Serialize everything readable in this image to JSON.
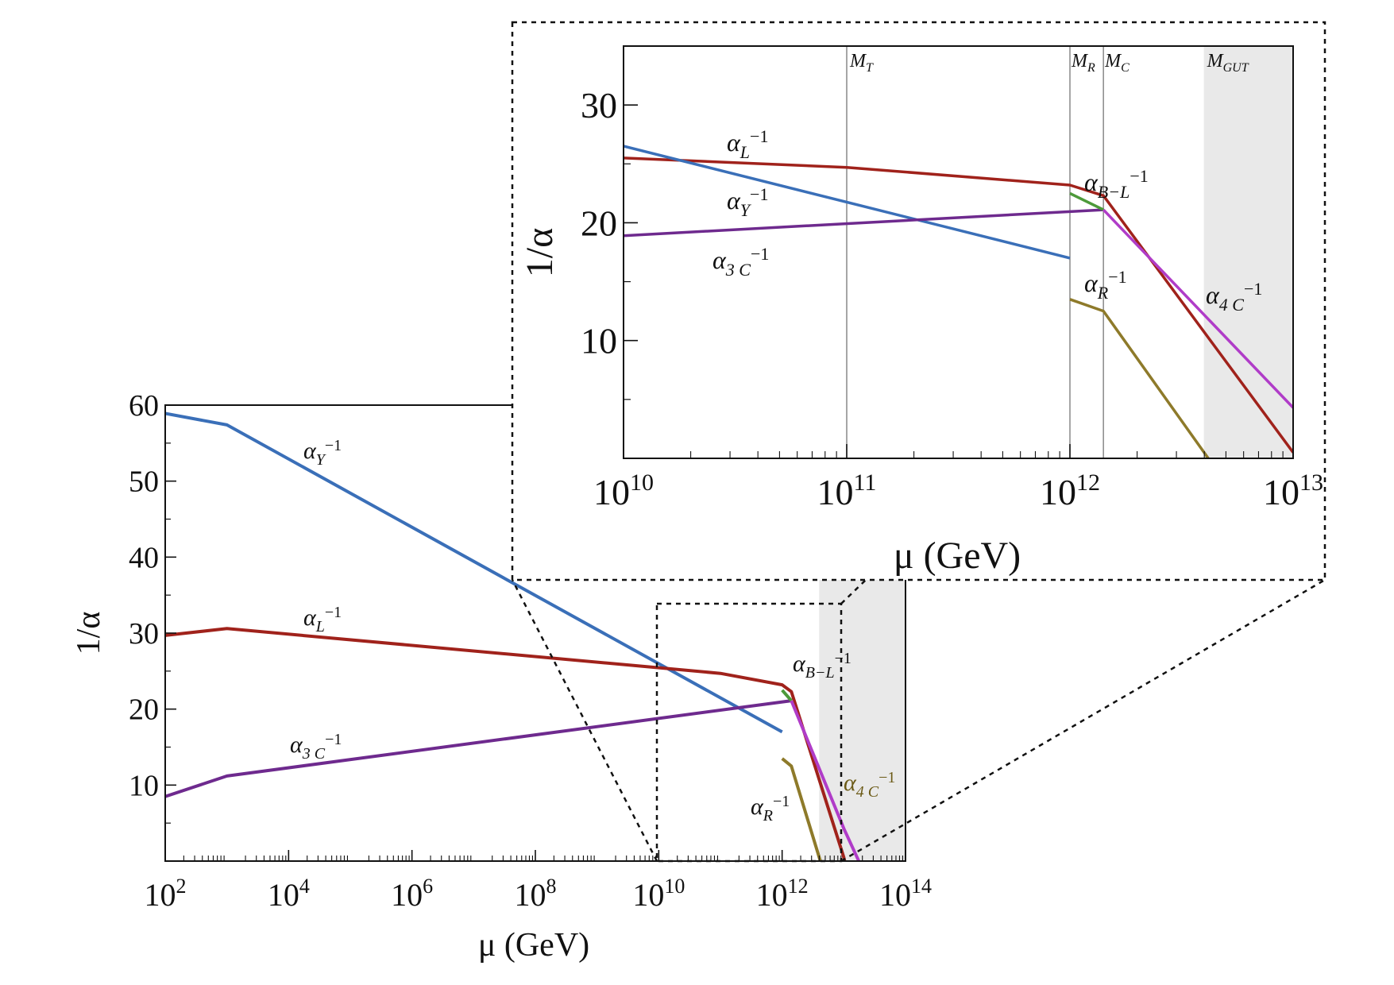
{
  "chart_data": [
    {
      "type": "line",
      "xscale": "log",
      "xlim_exp": [
        2,
        14
      ],
      "ylim": [
        0,
        60
      ],
      "xlabel": "μ (GeV)",
      "ylabel": "1/α",
      "xticks": [
        "10",
        "10",
        "10",
        "10",
        "10",
        "10",
        "10"
      ],
      "xtick_exponents": [
        "2",
        "4",
        "6",
        "8",
        "10",
        "12",
        "14"
      ],
      "xtick_values_exp": [
        2,
        4,
        6,
        8,
        10,
        12,
        14
      ],
      "yticks": [
        "10",
        "20",
        "30",
        "40",
        "50",
        "60"
      ],
      "ytick_values": [
        10,
        20,
        30,
        40,
        50,
        60
      ],
      "shaded_region_exp": [
        12.6,
        14
      ],
      "zoom_box_exp": [
        10,
        13
      ],
      "zoom_box_y": [
        0,
        34.5
      ],
      "series": [
        {
          "name": "αY⁻¹",
          "color": "#3a6fb8",
          "x_exp": [
            2,
            3,
            12
          ],
          "y": [
            58.9,
            57.4,
            17.0
          ]
        },
        {
          "name": "αL⁻¹",
          "color": "#a0221b",
          "x_exp": [
            2,
            3,
            11,
            12,
            12.15,
            13.0,
            13.1
          ],
          "y": [
            29.7,
            30.6,
            24.7,
            23.2,
            22.3,
            0.5,
            -3.0
          ]
        },
        {
          "name": "α3C⁻¹",
          "color": "#6e2a8e",
          "x_exp": [
            2,
            3,
            12.15
          ],
          "y": [
            8.5,
            11.2,
            21.1
          ]
        },
        {
          "name": "αB−L⁻¹",
          "color": "#4d9a3a",
          "x_exp": [
            12,
            12.15
          ],
          "y": [
            22.5,
            21.1
          ]
        },
        {
          "name": "α4C⁻¹",
          "color": "#b03cc8",
          "x_exp": [
            12.15,
            13.0,
            13.3
          ],
          "y": [
            21.1,
            4.3,
            -1.0
          ]
        },
        {
          "name": "αR⁻¹",
          "color": "#8e7a2a",
          "x_exp": [
            12,
            12.15,
            12.62
          ],
          "y": [
            13.5,
            12.5,
            0.0
          ]
        }
      ],
      "labels": {
        "alpha_y": {
          "base": "α",
          "sub": "Y",
          "sup": "−1"
        },
        "alpha_l": {
          "base": "α",
          "sub": "L",
          "sup": "−1"
        },
        "alpha_3c": {
          "base": "α",
          "sub": "3 C",
          "sup": "−1"
        },
        "alpha_bl": {
          "base": "α",
          "sub": "B−L",
          "sup": "−1"
        },
        "alpha_4c": {
          "base": "α",
          "sub": "4 C",
          "sup": "−1"
        },
        "alpha_r": {
          "base": "α",
          "sub": "R",
          "sup": "−1"
        }
      }
    },
    {
      "type": "line",
      "xscale": "log",
      "xlim_exp": [
        10,
        13
      ],
      "ylim": [
        0,
        35
      ],
      "xlabel": "μ (GeV)",
      "ylabel": "1/α",
      "xticks": [
        "10",
        "10",
        "10",
        "10"
      ],
      "xtick_exponents": [
        "10",
        "11",
        "12",
        "13"
      ],
      "xtick_values_exp": [
        10,
        11,
        12,
        13
      ],
      "yticks": [
        "10",
        "20",
        "30"
      ],
      "ytick_values": [
        10,
        20,
        30
      ],
      "shaded_region_exp": [
        12.6,
        13
      ],
      "vertical_markers": [
        {
          "label_base": "M",
          "label_sub": "T",
          "x_exp": 11
        },
        {
          "label_base": "M",
          "label_sub": "R",
          "x_exp": 12
        },
        {
          "label_base": "M",
          "label_sub": "C",
          "x_exp": 12.15
        },
        {
          "label_base": "M",
          "label_sub": "GUT",
          "x_exp": 12.6
        }
      ],
      "series": [
        {
          "name": "αL⁻¹",
          "color": "#a0221b",
          "x_exp": [
            10,
            11,
            12,
            12.15,
            13
          ],
          "y": [
            25.5,
            24.7,
            23.2,
            22.3,
            0.5
          ]
        },
        {
          "name": "αY⁻¹",
          "color": "#3a6fb8",
          "x_exp": [
            10,
            12
          ],
          "y": [
            26.5,
            17.0
          ]
        },
        {
          "name": "α3C⁻¹",
          "color": "#6e2a8e",
          "x_exp": [
            10,
            12.15
          ],
          "y": [
            18.9,
            21.1
          ]
        },
        {
          "name": "αB−L⁻¹",
          "color": "#4d9a3a",
          "x_exp": [
            12,
            12.15
          ],
          "y": [
            22.5,
            21.1
          ]
        },
        {
          "name": "α4C⁻¹",
          "color": "#b03cc8",
          "x_exp": [
            12.15,
            13
          ],
          "y": [
            21.1,
            4.3
          ]
        },
        {
          "name": "αR⁻¹",
          "color": "#8e7a2a",
          "x_exp": [
            12,
            12.15,
            12.62
          ],
          "y": [
            13.5,
            12.5,
            0.0
          ]
        }
      ],
      "labels": {
        "alpha_l": {
          "base": "α",
          "sub": "L",
          "sup": "−1"
        },
        "alpha_y": {
          "base": "α",
          "sub": "Y",
          "sup": "−1"
        },
        "alpha_3c": {
          "base": "α",
          "sub": "3 C",
          "sup": "−1"
        },
        "alpha_bl": {
          "base": "α",
          "sub": "B−L",
          "sup": "−1"
        },
        "alpha_r": {
          "base": "α",
          "sub": "R",
          "sup": "−1"
        },
        "alpha_4c": {
          "base": "α",
          "sub": "4 C",
          "sup": "−1"
        }
      }
    }
  ]
}
